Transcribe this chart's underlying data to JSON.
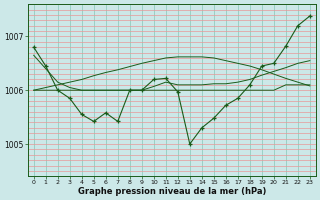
{
  "title": "",
  "xlabel": "Graphe pression niveau de la mer (hPa)",
  "ylabel": "",
  "background_color": "#cce8e8",
  "grid_color_v": "#88c8b8",
  "grid_color_h": "#e89898",
  "line_color": "#1a5c1a",
  "xlim": [
    -0.5,
    23.5
  ],
  "ylim": [
    1004.4,
    1007.6
  ],
  "yticks": [
    1005,
    1006,
    1007
  ],
  "xticks": [
    0,
    1,
    2,
    3,
    4,
    5,
    6,
    7,
    8,
    9,
    10,
    11,
    12,
    13,
    14,
    15,
    16,
    17,
    18,
    19,
    20,
    21,
    22,
    23
  ],
  "series0": [
    1006.8,
    1006.45,
    1006.0,
    1005.85,
    1005.55,
    1005.42,
    1005.58,
    1005.42,
    1006.0,
    1006.0,
    1006.2,
    1006.22,
    1005.97,
    1005.0,
    1005.3,
    1005.48,
    1005.72,
    1005.85,
    1006.1,
    1006.45,
    1006.5,
    1006.82,
    1007.2,
    1007.38
  ],
  "series1": [
    1006.0,
    1006.0,
    1006.0,
    1006.0,
    1006.0,
    1006.0,
    1006.0,
    1006.0,
    1006.0,
    1006.0,
    1006.0,
    1006.0,
    1006.0,
    1006.0,
    1006.0,
    1006.0,
    1006.0,
    1006.0,
    1006.0,
    1006.0,
    1006.0,
    1006.1,
    1006.1,
    1006.1
  ],
  "series2": [
    1006.0,
    1006.05,
    1006.1,
    1006.15,
    1006.2,
    1006.27,
    1006.33,
    1006.38,
    1006.44,
    1006.5,
    1006.55,
    1006.6,
    1006.62,
    1006.62,
    1006.62,
    1006.6,
    1006.55,
    1006.5,
    1006.45,
    1006.38,
    1006.3,
    1006.22,
    1006.15,
    1006.08
  ],
  "series3": [
    1006.65,
    1006.4,
    1006.15,
    1006.05,
    1006.0,
    1006.0,
    1006.0,
    1006.0,
    1006.0,
    1006.0,
    1006.07,
    1006.15,
    1006.1,
    1006.1,
    1006.1,
    1006.12,
    1006.12,
    1006.15,
    1006.2,
    1006.28,
    1006.35,
    1006.42,
    1006.5,
    1006.55
  ]
}
